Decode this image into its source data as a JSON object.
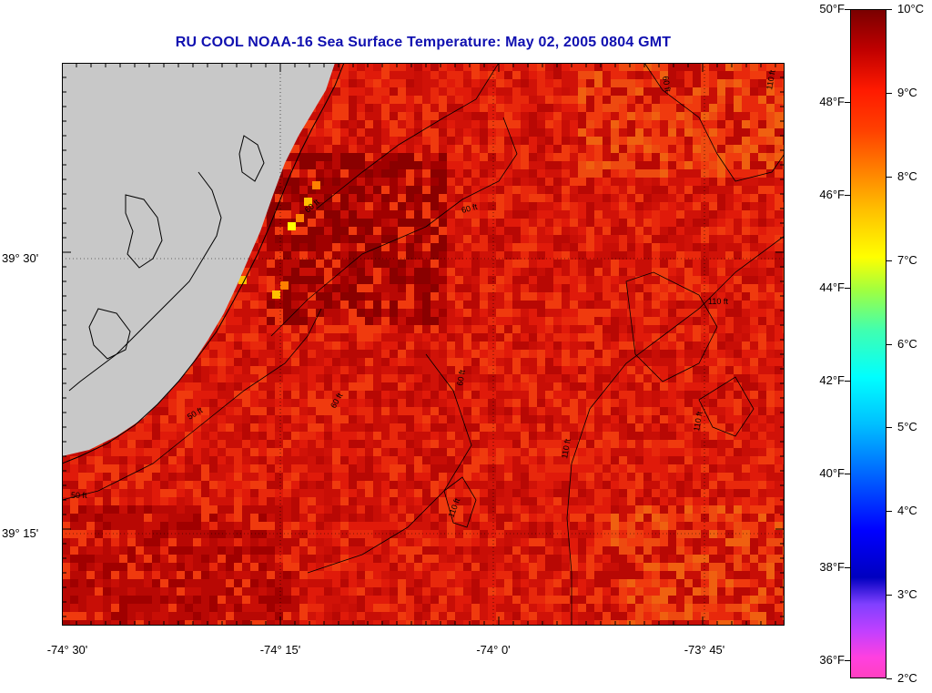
{
  "title": "RU COOL  NOAA-16  Sea Surface Temperature:  May 02, 2005 0804 GMT",
  "map": {
    "lat_labels": [
      {
        "text": "39° 30'",
        "value": 39.5
      },
      {
        "text": "39° 15'",
        "value": 39.25
      }
    ],
    "lon_labels": [
      {
        "text": "-74° 30'",
        "value": -74.5
      },
      {
        "text": "-74° 15'",
        "value": -74.25
      },
      {
        "text": "-74° 0'",
        "value": -74.0
      },
      {
        "text": "-73° 45'",
        "value": -73.75
      }
    ],
    "contour_labels": [
      "50 ft",
      "50 ft",
      "60 ft",
      "60 ft",
      "60 ft",
      "60 ft",
      "60 ft",
      "110 ft",
      "110 ft",
      "110 ft",
      "110 ft",
      "110 ft"
    ]
  },
  "colorbar": {
    "min_c": 2,
    "max_c": 10,
    "fahrenheit_labels": [
      "50°F",
      "48°F",
      "46°F",
      "44°F",
      "42°F",
      "40°F",
      "38°F",
      "36°F"
    ],
    "celsius_labels": [
      "10°C",
      "9°C",
      "8°C",
      "7°C",
      "6°C",
      "5°C",
      "4°C",
      "3°C",
      "2°C"
    ]
  },
  "colors": {
    "land": "#c8c8c8",
    "title": "#1010b0",
    "warm": "#e01a0a",
    "hot": "#8a0000",
    "orange": "#f06010"
  }
}
